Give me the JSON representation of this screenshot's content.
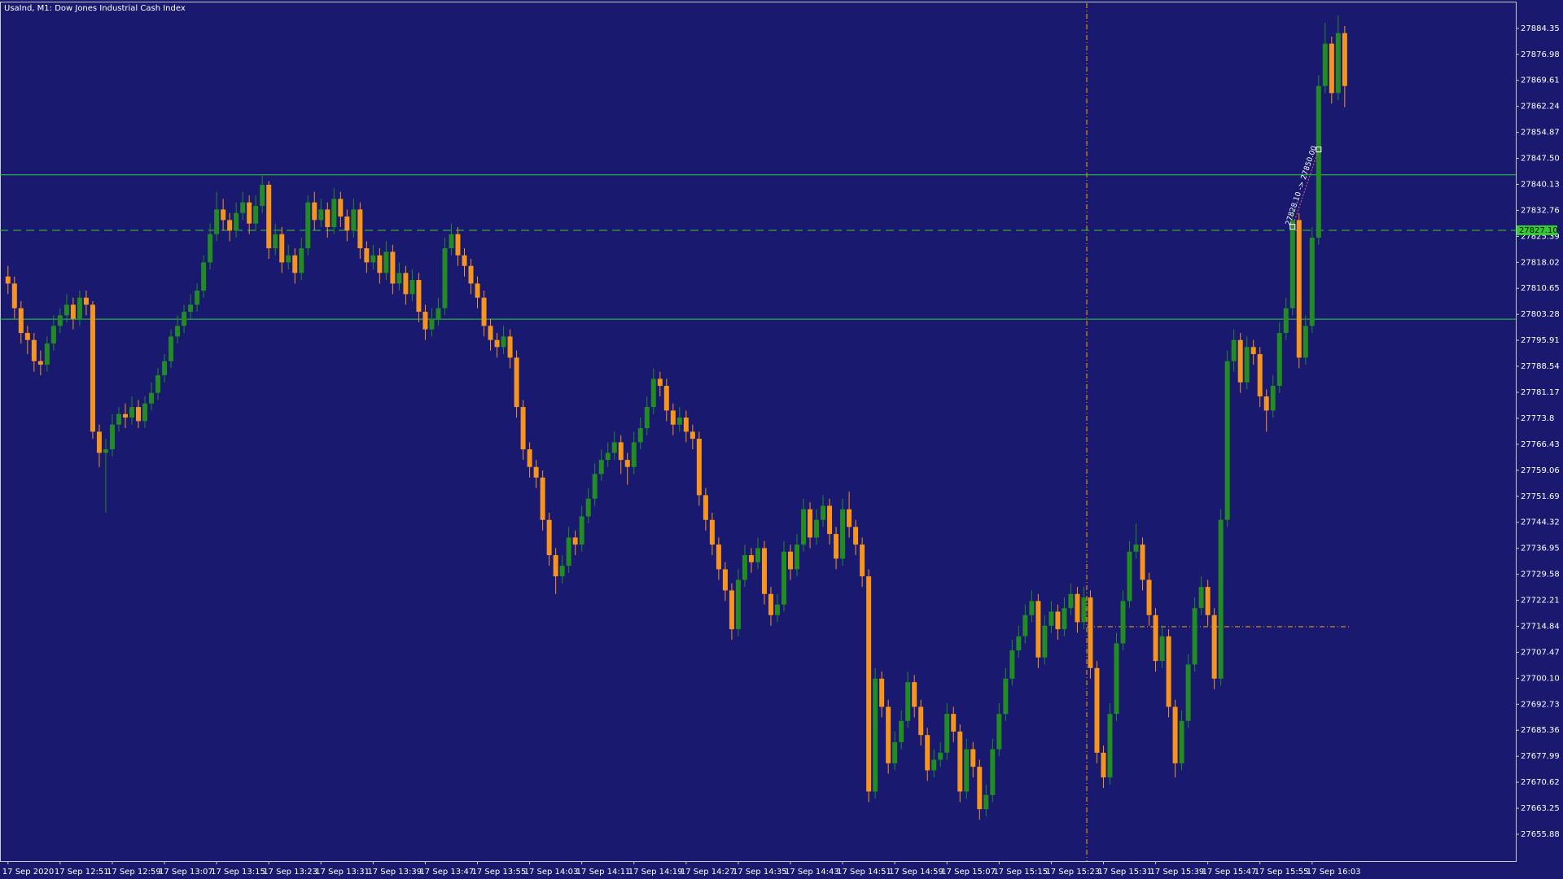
{
  "chart_data": {
    "type": "candlestick",
    "title": "UsaInd, M1:  Dow Jones Industrial Cash Index",
    "background": "#191970",
    "up_color": "#228b22",
    "down_color": "#f7941d",
    "level_color": "#32cd32",
    "ylim": [
      27648.27,
      27891.69
    ],
    "yticks": [
      27884.35,
      27876.98,
      27869.61,
      27862.24,
      27854.87,
      {
        "value": 27847.5,
        "label": "27847.50"
      },
      27840.13,
      27832.76,
      27825.39,
      27818.02,
      27810.65,
      27803.28,
      27795.91,
      27788.54,
      27781.17,
      27773.8,
      27766.43,
      27759.06,
      27751.69,
      27744.32,
      27736.95,
      27729.58,
      27722.21,
      27714.84,
      27707.47,
      {
        "value": 27700.1,
        "label": "27700.10"
      },
      27692.73,
      27685.36,
      27677.99,
      27670.62,
      27663.25,
      27655.88
    ],
    "levels": [
      27842.84,
      27801.9
    ],
    "bid": {
      "value": 27827.1,
      "label": "27827.10"
    },
    "trendline": {
      "label": "27828.10 -> 27850.00",
      "start": 27828.1,
      "end": 27850
    },
    "categories": [
      "17 Sep 2020",
      null,
      null,
      null,
      null,
      null,
      null,
      null,
      "17 Sep 12:51",
      null,
      null,
      null,
      null,
      null,
      null,
      null,
      "17 Sep 12:59",
      null,
      null,
      null,
      null,
      null,
      null,
      null,
      "17 Sep 13:07",
      null,
      null,
      null,
      null,
      null,
      null,
      null,
      "17 Sep 13:15",
      null,
      null,
      null,
      null,
      null,
      null,
      null,
      "17 Sep 13:23",
      null,
      null,
      null,
      null,
      null,
      null,
      null,
      "17 Sep 13:31",
      null,
      null,
      null,
      null,
      null,
      null,
      null,
      "17 Sep 13:39",
      null,
      null,
      null,
      null,
      null,
      null,
      null,
      "17 Sep 13:47",
      null,
      null,
      null,
      null,
      null,
      null,
      null,
      "17 Sep 13:55",
      null,
      null,
      null,
      null,
      null,
      null,
      null,
      "17 Sep 14:03",
      null,
      null,
      null,
      null,
      null,
      null,
      null,
      "17 Sep 14:11",
      null,
      null,
      null,
      null,
      null,
      null,
      null,
      "17 Sep 14:19",
      null,
      null,
      null,
      null,
      null,
      null,
      null,
      "17 Sep 14:27",
      null,
      null,
      null,
      null,
      null,
      null,
      null,
      "17 Sep 14:35",
      null,
      null,
      null,
      null,
      null,
      null,
      null,
      "17 Sep 14:43",
      null,
      null,
      null,
      null,
      null,
      null,
      null,
      "17 Sep 14:51",
      null,
      null,
      null,
      null,
      null,
      null,
      null,
      "17 Sep 14:59",
      null,
      null,
      null,
      null,
      null,
      null,
      null,
      "17 Sep 15:07",
      null,
      null,
      null,
      null,
      null,
      null,
      null,
      "17 Sep 15:15",
      null,
      null,
      null,
      null,
      null,
      null,
      null,
      "17 Sep 15:23",
      null,
      null,
      null,
      null,
      null,
      null,
      null,
      "17 Sep 15:31",
      null,
      null,
      null,
      null,
      null,
      null,
      null,
      "17 Sep 15:39",
      null,
      null,
      null,
      null,
      null,
      null,
      null,
      "17 Sep 15:47",
      null,
      null,
      null,
      null,
      null,
      null,
      null,
      "17 Sep 15:55",
      null,
      null,
      null,
      null,
      null,
      null,
      null,
      "17 Sep 16:03",
      null,
      null,
      null,
      null,
      null
    ],
    "candles": [
      [
        27814,
        27817,
        27809,
        27812
      ],
      [
        27812,
        27814,
        27802,
        27805
      ],
      [
        27805,
        27807,
        27795,
        27798
      ],
      [
        27798,
        27800,
        27792,
        27796
      ],
      [
        27796,
        27798,
        27787,
        27790
      ],
      [
        27790,
        27793,
        27786,
        27789
      ],
      [
        27789,
        27797,
        27787,
        27795
      ],
      [
        27795,
        27803,
        27793,
        27800
      ],
      [
        27800,
        27805,
        27798,
        27803
      ],
      [
        27803,
        27809,
        27801,
        27806
      ],
      [
        27806,
        27808,
        27799,
        27802
      ],
      [
        27802,
        27810,
        27800,
        27808
      ],
      [
        27808,
        27810,
        27803,
        27806
      ],
      [
        27806,
        27807,
        27768,
        27770
      ],
      [
        27770,
        27772,
        27760,
        27764
      ],
      [
        27764,
        27768,
        27747,
        27765
      ],
      [
        27765,
        27775,
        27763,
        27772
      ],
      [
        27772,
        27777,
        27770,
        27775
      ],
      [
        27775,
        27778,
        27771,
        27774
      ],
      [
        27774,
        27780,
        27772,
        27777
      ],
      [
        27777,
        27779,
        27771,
        27773
      ],
      [
        27773,
        27780,
        27771,
        27778
      ],
      [
        27778,
        27784,
        27776,
        27781
      ],
      [
        27781,
        27788,
        27779,
        27786
      ],
      [
        27786,
        27792,
        27784,
        27790
      ],
      [
        27790,
        27799,
        27788,
        27797
      ],
      [
        27797,
        27803,
        27795,
        27800
      ],
      [
        27800,
        27806,
        27798,
        27804
      ],
      [
        27804,
        27809,
        27802,
        27806
      ],
      [
        27806,
        27812,
        27804,
        27810
      ],
      [
        27810,
        27820,
        27808,
        27818
      ],
      [
        27818,
        27829,
        27816,
        27826
      ],
      [
        27826,
        27838,
        27824,
        27833
      ],
      [
        27833,
        27836,
        27827,
        27830
      ],
      [
        27830,
        27832,
        27824,
        27827
      ],
      [
        27827,
        27835,
        27825,
        27832
      ],
      [
        27832,
        27838,
        27830,
        27835
      ],
      [
        27835,
        27837,
        27826,
        27829
      ],
      [
        27829,
        27837,
        27827,
        27834
      ],
      [
        27834,
        27843,
        27832,
        27840
      ],
      [
        27840,
        27841,
        27819,
        27822
      ],
      [
        27822,
        27829,
        27820,
        27826
      ],
      [
        27826,
        27828,
        27815,
        27818
      ],
      [
        27818,
        27823,
        27816,
        27820
      ],
      [
        27820,
        27822,
        27812,
        27815
      ],
      [
        27815,
        27825,
        27813,
        27822
      ],
      [
        27822,
        27837,
        27820,
        27835
      ],
      [
        27835,
        27838,
        27827,
        27830
      ],
      [
        27830,
        27836,
        27828,
        27833
      ],
      [
        27833,
        27835,
        27825,
        27828
      ],
      [
        27828,
        27839,
        27826,
        27836
      ],
      [
        27836,
        27838,
        27828,
        27831
      ],
      [
        27831,
        27833,
        27824,
        27827
      ],
      [
        27827,
        27836,
        27825,
        27833
      ],
      [
        27833,
        27835,
        27819,
        27822
      ],
      [
        27822,
        27824,
        27815,
        27818
      ],
      [
        27818,
        27823,
        27816,
        27820
      ],
      [
        27820,
        27822,
        27812,
        27815
      ],
      [
        27815,
        27824,
        27813,
        27821
      ],
      [
        27821,
        27823,
        27809,
        27812
      ],
      [
        27812,
        27818,
        27810,
        27815
      ],
      [
        27815,
        27817,
        27806,
        27809
      ],
      [
        27809,
        27816,
        27807,
        27813
      ],
      [
        27813,
        27815,
        27801,
        27804
      ],
      [
        27804,
        27806,
        27796,
        27799
      ],
      [
        27799,
        27805,
        27797,
        27802
      ],
      [
        27802,
        27808,
        27800,
        27805
      ],
      [
        27805,
        27825,
        27803,
        27822
      ],
      [
        27822,
        27829,
        27820,
        27826
      ],
      [
        27826,
        27828,
        27817,
        27820
      ],
      [
        27820,
        27822,
        27814,
        27817
      ],
      [
        27817,
        27819,
        27809,
        27812
      ],
      [
        27812,
        27814,
        27805,
        27808
      ],
      [
        27808,
        27810,
        27797,
        27800
      ],
      [
        27800,
        27802,
        27793,
        27796
      ],
      [
        27796,
        27798,
        27791,
        27794
      ],
      [
        27794,
        27800,
        27792,
        27797
      ],
      [
        27797,
        27799,
        27788,
        27791
      ],
      [
        27791,
        27793,
        27774,
        27777
      ],
      [
        27777,
        27779,
        27762,
        27765
      ],
      [
        27765,
        27767,
        27757,
        27760
      ],
      [
        27760,
        27762,
        27754,
        27757
      ],
      [
        27757,
        27759,
        27742,
        27745
      ],
      [
        27745,
        27747,
        27732,
        27735
      ],
      [
        27735,
        27737,
        27724,
        27729
      ],
      [
        27729,
        27735,
        27727,
        27732
      ],
      [
        27732,
        27743,
        27730,
        27740
      ],
      [
        27740,
        27742,
        27735,
        27738
      ],
      [
        27738,
        27749,
        27736,
        27746
      ],
      [
        27746,
        27754,
        27744,
        27751
      ],
      [
        27751,
        27761,
        27749,
        27758
      ],
      [
        27758,
        27765,
        27756,
        27762
      ],
      [
        27762,
        27767,
        27760,
        27764
      ],
      [
        27764,
        27770,
        27762,
        27767
      ],
      [
        27767,
        27769,
        27758,
        27762
      ],
      [
        27762,
        27764,
        27755,
        27760
      ],
      [
        27760,
        27770,
        27758,
        27767
      ],
      [
        27767,
        27774,
        27765,
        27771
      ],
      [
        27771,
        27780,
        27769,
        27777
      ],
      [
        27777,
        27788,
        27775,
        27785
      ],
      [
        27785,
        27787,
        27780,
        27783
      ],
      [
        27783,
        27785,
        27773,
        27776
      ],
      [
        27776,
        27778,
        27769,
        27772
      ],
      [
        27772,
        27777,
        27770,
        27774
      ],
      [
        27774,
        27776,
        27767,
        27770
      ],
      [
        27770,
        27772,
        27765,
        27768
      ],
      [
        27768,
        27770,
        27749,
        27752
      ],
      [
        27752,
        27754,
        27742,
        27745
      ],
      [
        27745,
        27747,
        27735,
        27738
      ],
      [
        27738,
        27740,
        27728,
        27731
      ],
      [
        27731,
        27733,
        27722,
        27725
      ],
      [
        27725,
        27727,
        27711,
        27714
      ],
      [
        27714,
        27731,
        27712,
        27728
      ],
      [
        27728,
        27738,
        27726,
        27735
      ],
      [
        27735,
        27737,
        27730,
        27733
      ],
      [
        27733,
        27740,
        27731,
        27737
      ],
      [
        27737,
        27739,
        27721,
        27724
      ],
      [
        27724,
        27726,
        27715,
        27718
      ],
      [
        27718,
        27724,
        27716,
        27721
      ],
      [
        27721,
        27739,
        27719,
        27736
      ],
      [
        27736,
        27738,
        27728,
        27731
      ],
      [
        27731,
        27741,
        27729,
        27738
      ],
      [
        27738,
        27751,
        27736,
        27748
      ],
      [
        27748,
        27750,
        27737,
        27740
      ],
      [
        27740,
        27748,
        27738,
        27745
      ],
      [
        27745,
        27752,
        27743,
        27749
      ],
      [
        27749,
        27751,
        27738,
        27741
      ],
      [
        27741,
        27743,
        27731,
        27734
      ],
      [
        27734,
        27751,
        27732,
        27748
      ],
      [
        27748,
        27753,
        27740,
        27743
      ],
      [
        27743,
        27745,
        27735,
        27738
      ],
      [
        27738,
        27740,
        27726,
        27729
      ],
      [
        27729,
        27731,
        27665,
        27668
      ],
      [
        27668,
        27703,
        27666,
        27700
      ],
      [
        27700,
        27702,
        27689,
        27692
      ],
      [
        27692,
        27694,
        27673,
        27676
      ],
      [
        27676,
        27685,
        27674,
        27682
      ],
      [
        27682,
        27691,
        27680,
        27688
      ],
      [
        27688,
        27702,
        27686,
        27699
      ],
      [
        27699,
        27701,
        27689,
        27692
      ],
      [
        27692,
        27694,
        27681,
        27684
      ],
      [
        27684,
        27686,
        27671,
        27674
      ],
      [
        27674,
        27680,
        27672,
        27677
      ],
      [
        27677,
        27682,
        27675,
        27679
      ],
      [
        27679,
        27693,
        27677,
        27690
      ],
      [
        27690,
        27692,
        27682,
        27685
      ],
      [
        27685,
        27687,
        27665,
        27668
      ],
      [
        27668,
        27683,
        27666,
        27680
      ],
      [
        27680,
        27682,
        27672,
        27675
      ],
      [
        27675,
        27677,
        27660,
        27663
      ],
      [
        27663,
        27670,
        27661,
        27667
      ],
      [
        27667,
        27683,
        27665,
        27680
      ],
      [
        27680,
        27693,
        27678,
        27690
      ],
      [
        27690,
        27703,
        27688,
        27700
      ],
      [
        27700,
        27711,
        27698,
        27708
      ],
      [
        27708,
        27715,
        27706,
        27712
      ],
      [
        27712,
        27721,
        27710,
        27718
      ],
      [
        27718,
        27725,
        27716,
        27722
      ],
      [
        27722,
        27724,
        27703,
        27706
      ],
      [
        27706,
        27718,
        27704,
        27715
      ],
      [
        27715,
        27722,
        27713,
        27719
      ],
      [
        27719,
        27721,
        27711,
        27714
      ],
      [
        27714,
        27723,
        27712,
        27720
      ],
      [
        27720,
        27727,
        27718,
        27724
      ],
      [
        27724,
        27726,
        27713,
        27716
      ],
      [
        27716,
        27726,
        27714,
        27723
      ],
      [
        27723,
        27725,
        27700,
        27703
      ],
      [
        27703,
        27705,
        27676,
        27679
      ],
      [
        27679,
        27681,
        27669,
        27672
      ],
      [
        27672,
        27693,
        27670,
        27690
      ],
      [
        27690,
        27713,
        27688,
        27710
      ],
      [
        27710,
        27725,
        27708,
        27722
      ],
      [
        27722,
        27739,
        27720,
        27736
      ],
      [
        27736,
        27744,
        27734,
        27738
      ],
      [
        27738,
        27740,
        27725,
        27728
      ],
      [
        27728,
        27730,
        27715,
        27718
      ],
      [
        27718,
        27720,
        27702,
        27705
      ],
      [
        27705,
        27715,
        27703,
        27712
      ],
      [
        27712,
        27714,
        27689,
        27692
      ],
      [
        27692,
        27694,
        27672,
        27676
      ],
      [
        27676,
        27691,
        27674,
        27688
      ],
      [
        27688,
        27707,
        27686,
        27704
      ],
      [
        27704,
        27723,
        27702,
        27720
      ],
      [
        27720,
        27729,
        27718,
        27726
      ],
      [
        27726,
        27728,
        27715,
        27718
      ],
      [
        27718,
        27720,
        27697,
        27700
      ],
      [
        27700,
        27748,
        27698,
        27745
      ],
      [
        27745,
        27793,
        27743,
        27790
      ],
      [
        27790,
        27799,
        27787,
        27796
      ],
      [
        27796,
        27798,
        27781,
        27784
      ],
      [
        27784,
        27797,
        27782,
        27794
      ],
      [
        27794,
        27796,
        27789,
        27792
      ],
      [
        27792,
        27794,
        27777,
        27780
      ],
      [
        27780,
        27782,
        27770,
        27776
      ],
      [
        27776,
        27786,
        27774,
        27783
      ],
      [
        27783,
        27801,
        27781,
        27798
      ],
      [
        27798,
        27808,
        27796,
        27805
      ],
      [
        27805,
        27833,
        27803,
        27830
      ],
      [
        27830,
        27832,
        27788,
        27791
      ],
      [
        27791,
        27803,
        27789,
        27800
      ],
      [
        27800,
        27828,
        27798,
        27825
      ],
      [
        27825,
        27871,
        27823,
        27868
      ],
      [
        27868,
        27886,
        27866,
        27880
      ],
      [
        27880,
        27882,
        27863,
        27866
      ],
      [
        27866,
        27888,
        27864,
        27883
      ],
      [
        27883,
        27885,
        27862,
        27868
      ]
    ]
  }
}
